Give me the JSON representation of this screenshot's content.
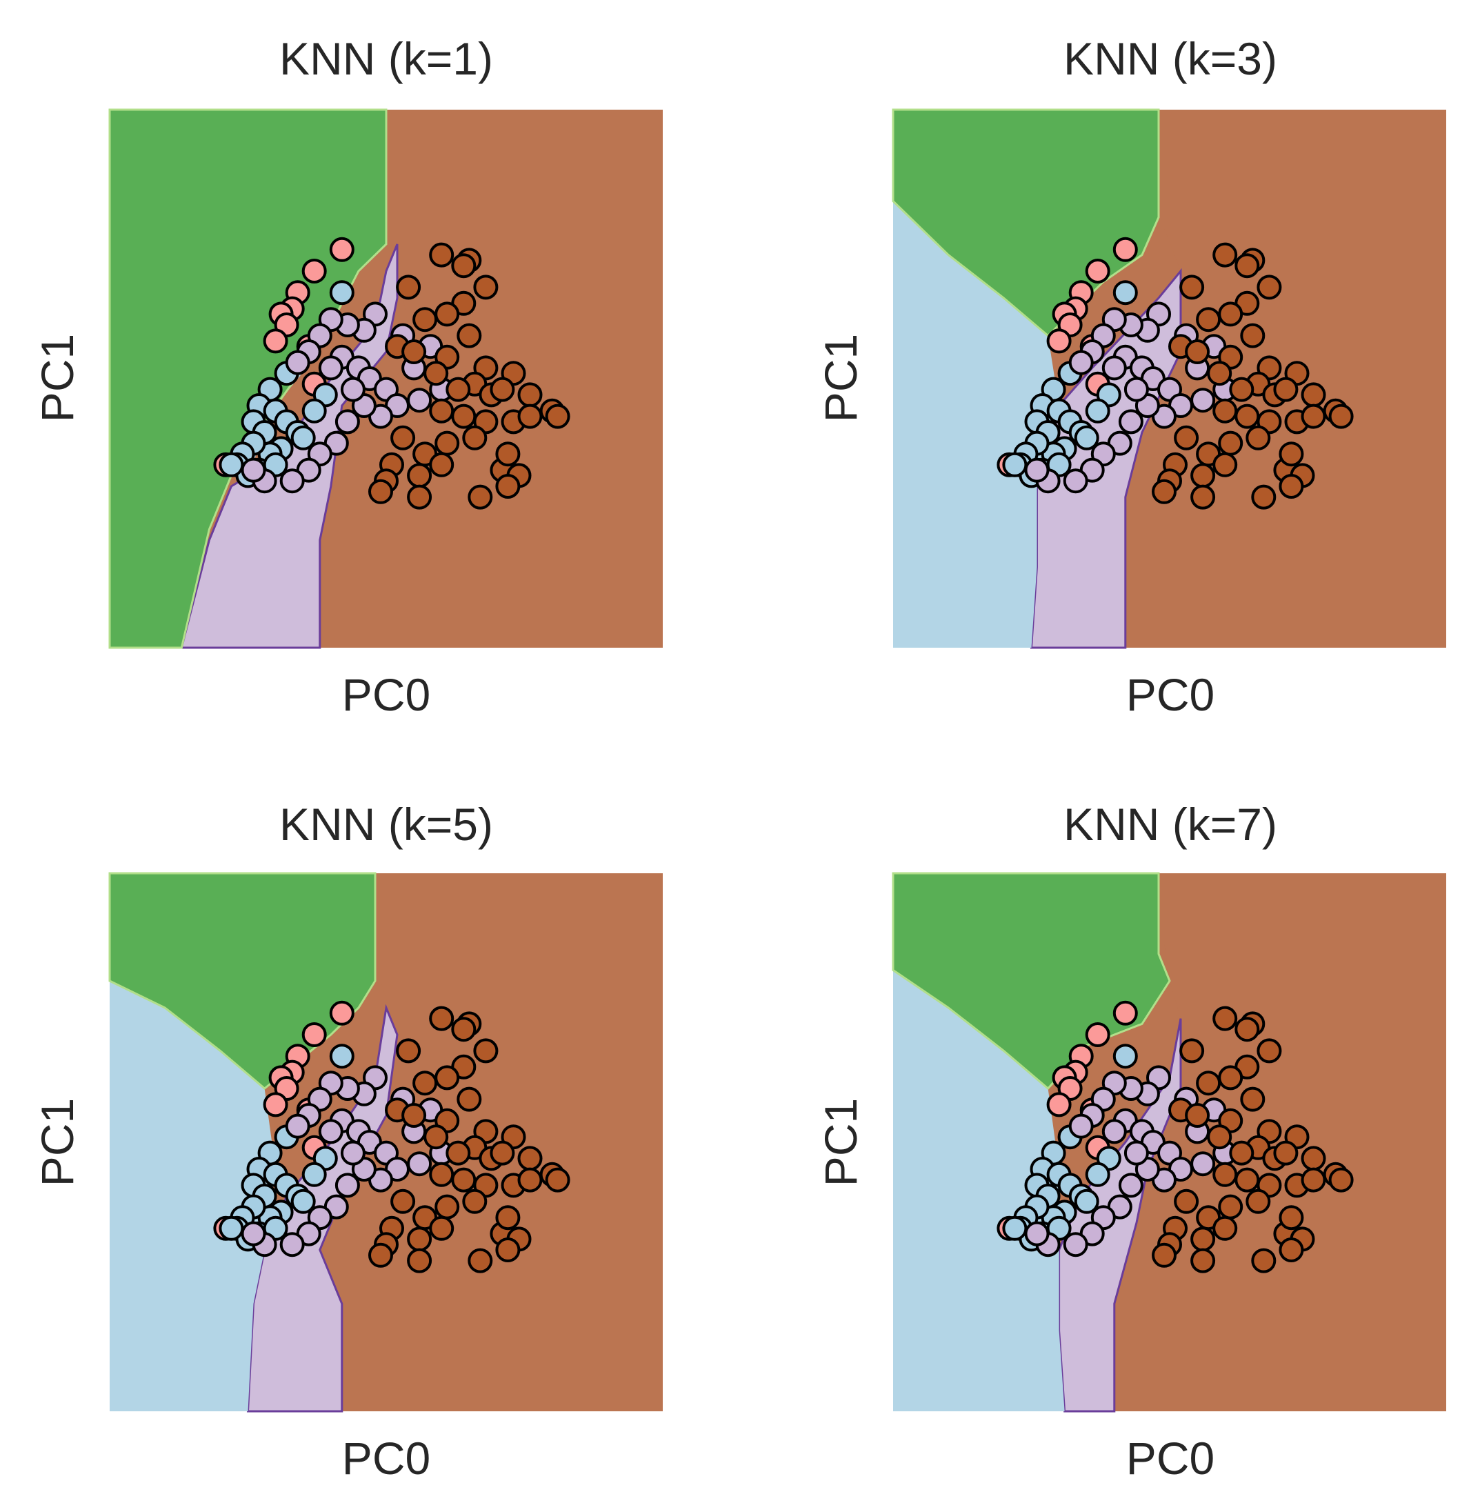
{
  "figure": {
    "region_colors": {
      "green": "#59af55",
      "blue": "#b3d5e6",
      "purple": "#cfbddb",
      "brown": "#bb7551",
      "light_green_border": "#b2df8a",
      "pink_border": "#fb9a99",
      "purple_border": "#6a3d9a"
    },
    "point_colors": {
      "pink": "#fb9a99",
      "blue": "#a6cee3",
      "purple": "#cab2d6",
      "brown": "#b15928"
    },
    "point_edge_color": "#000000"
  },
  "chart_data": [
    {
      "type": "scatter",
      "title": "KNN (k=1)",
      "xlabel": "PC0",
      "ylabel": "PC1",
      "ticks": "none",
      "grid": false,
      "legend": "none",
      "decision_regions": "k=1"
    },
    {
      "type": "scatter",
      "title": "KNN (k=3)",
      "xlabel": "PC0",
      "ylabel": "PC1",
      "ticks": "none",
      "grid": false,
      "legend": "none",
      "decision_regions": "k=3"
    },
    {
      "type": "scatter",
      "title": "KNN (k=5)",
      "xlabel": "PC0",
      "ylabel": "PC1",
      "ticks": "none",
      "grid": false,
      "legend": "none",
      "decision_regions": "k=5"
    },
    {
      "type": "scatter",
      "title": "KNN (k=7)",
      "xlabel": "PC0",
      "ylabel": "PC1",
      "ticks": "none",
      "grid": false,
      "legend": "none",
      "decision_regions": "k=7"
    }
  ],
  "points": {
    "classes": [
      "pink",
      "blue",
      "purple",
      "brown"
    ],
    "pink": [
      [
        0.42,
        0.26
      ],
      [
        0.37,
        0.3
      ],
      [
        0.34,
        0.34
      ],
      [
        0.33,
        0.37
      ],
      [
        0.31,
        0.38
      ],
      [
        0.32,
        0.4
      ],
      [
        0.36,
        0.44
      ],
      [
        0.3,
        0.43
      ],
      [
        0.21,
        0.66
      ],
      [
        0.37,
        0.51
      ]
    ],
    "blue": [
      [
        0.42,
        0.34
      ],
      [
        0.32,
        0.49
      ],
      [
        0.29,
        0.52
      ],
      [
        0.27,
        0.55
      ],
      [
        0.26,
        0.58
      ],
      [
        0.28,
        0.6
      ],
      [
        0.3,
        0.56
      ],
      [
        0.32,
        0.58
      ],
      [
        0.34,
        0.6
      ],
      [
        0.31,
        0.63
      ],
      [
        0.29,
        0.64
      ],
      [
        0.26,
        0.62
      ],
      [
        0.24,
        0.64
      ],
      [
        0.23,
        0.66
      ],
      [
        0.25,
        0.68
      ],
      [
        0.27,
        0.67
      ],
      [
        0.3,
        0.66
      ],
      [
        0.35,
        0.61
      ],
      [
        0.39,
        0.53
      ],
      [
        0.37,
        0.56
      ],
      [
        0.22,
        0.66
      ]
    ],
    "purple": [
      [
        0.48,
        0.38
      ],
      [
        0.46,
        0.41
      ],
      [
        0.43,
        0.4
      ],
      [
        0.4,
        0.39
      ],
      [
        0.38,
        0.42
      ],
      [
        0.36,
        0.45
      ],
      [
        0.42,
        0.46
      ],
      [
        0.45,
        0.48
      ],
      [
        0.47,
        0.5
      ],
      [
        0.5,
        0.52
      ],
      [
        0.53,
        0.42
      ],
      [
        0.55,
        0.48
      ],
      [
        0.56,
        0.54
      ],
      [
        0.52,
        0.55
      ],
      [
        0.49,
        0.57
      ],
      [
        0.46,
        0.55
      ],
      [
        0.43,
        0.58
      ],
      [
        0.41,
        0.62
      ],
      [
        0.38,
        0.64
      ],
      [
        0.36,
        0.67
      ],
      [
        0.33,
        0.69
      ],
      [
        0.28,
        0.69
      ],
      [
        0.26,
        0.67
      ],
      [
        0.44,
        0.52
      ],
      [
        0.4,
        0.48
      ],
      [
        0.34,
        0.47
      ],
      [
        0.58,
        0.44
      ],
      [
        0.6,
        0.52
      ]
    ],
    "brown": [
      [
        0.6,
        0.27
      ],
      [
        0.65,
        0.28
      ],
      [
        0.64,
        0.29
      ],
      [
        0.68,
        0.33
      ],
      [
        0.54,
        0.33
      ],
      [
        0.64,
        0.36
      ],
      [
        0.61,
        0.38
      ],
      [
        0.57,
        0.39
      ],
      [
        0.65,
        0.42
      ],
      [
        0.52,
        0.44
      ],
      [
        0.55,
        0.45
      ],
      [
        0.61,
        0.46
      ],
      [
        0.68,
        0.48
      ],
      [
        0.66,
        0.51
      ],
      [
        0.73,
        0.49
      ],
      [
        0.59,
        0.49
      ],
      [
        0.63,
        0.52
      ],
      [
        0.69,
        0.53
      ],
      [
        0.71,
        0.52
      ],
      [
        0.76,
        0.53
      ],
      [
        0.8,
        0.56
      ],
      [
        0.6,
        0.56
      ],
      [
        0.64,
        0.57
      ],
      [
        0.68,
        0.58
      ],
      [
        0.73,
        0.58
      ],
      [
        0.66,
        0.61
      ],
      [
        0.61,
        0.62
      ],
      [
        0.57,
        0.64
      ],
      [
        0.51,
        0.66
      ],
      [
        0.53,
        0.61
      ],
      [
        0.6,
        0.66
      ],
      [
        0.5,
        0.69
      ],
      [
        0.56,
        0.68
      ],
      [
        0.71,
        0.67
      ],
      [
        0.72,
        0.64
      ],
      [
        0.81,
        0.57
      ],
      [
        0.76,
        0.57
      ],
      [
        0.74,
        0.68
      ],
      [
        0.72,
        0.7
      ],
      [
        0.67,
        0.72
      ],
      [
        0.56,
        0.72
      ],
      [
        0.49,
        0.71
      ]
    ]
  }
}
